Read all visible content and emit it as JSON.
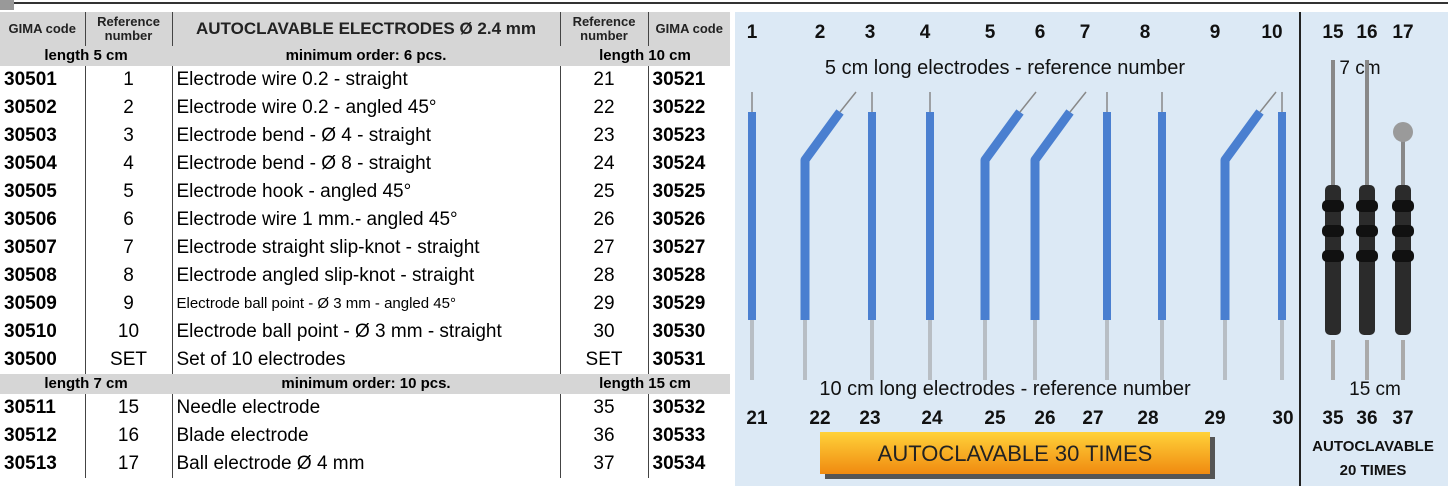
{
  "table": {
    "header": [
      "GIMA code",
      "Reference number",
      "AUTOCLAVABLE ELECTRODES Ø 2.4 mm",
      "Reference number",
      "GIMA code"
    ],
    "sections": [
      {
        "left": "length 5 cm",
        "middle": "minimum order: 6 pcs.",
        "right": "length 10 cm",
        "rows": [
          [
            "30501",
            "1",
            "Electrode wire 0.2 - straight",
            "21",
            "30521"
          ],
          [
            "30502",
            "2",
            "Electrode wire 0.2 - angled 45°",
            "22",
            "30522"
          ],
          [
            "30503",
            "3",
            "Electrode bend - Ø 4 - straight",
            "23",
            "30523"
          ],
          [
            "30504",
            "4",
            "Electrode bend - Ø 8 - straight",
            "24",
            "30524"
          ],
          [
            "30505",
            "5",
            "Electrode hook - angled 45°",
            "25",
            "30525"
          ],
          [
            "30506",
            "6",
            "Electrode wire 1 mm.- angled 45°",
            "26",
            "30526"
          ],
          [
            "30507",
            "7",
            "Electrode straight slip-knot - straight",
            "27",
            "30527"
          ],
          [
            "30508",
            "8",
            "Electrode angled slip-knot - straight",
            "28",
            "30528"
          ],
          [
            "30509",
            "9",
            "Electrode ball point - Ø 3 mm - angled 45°",
            "29",
            "30529"
          ],
          [
            "30510",
            "10",
            "Electrode ball point - Ø 3 mm - straight",
            "30",
            "30530"
          ],
          [
            "30500",
            "SET",
            "Set of 10 electrodes",
            "SET",
            "30531"
          ]
        ]
      },
      {
        "left": "length 7 cm",
        "middle": "minimum order: 10 pcs.",
        "right": "length 15 cm",
        "rows": [
          [
            "30511",
            "15",
            "Needle electrode",
            "35",
            "30532"
          ],
          [
            "30512",
            "16",
            "Blade electrode",
            "36",
            "30533"
          ],
          [
            "30513",
            "17",
            "Ball electrode Ø 4 mm",
            "37",
            "30534"
          ]
        ]
      }
    ]
  },
  "figure": {
    "top_numbers": [
      "1",
      "2",
      "3",
      "4",
      "5",
      "6",
      "7",
      "8",
      "9",
      "10"
    ],
    "top_right_numbers": [
      "15",
      "16",
      "17"
    ],
    "top_caption": "5 cm long electrodes - reference number",
    "top_right_caption": "7 cm",
    "bottom_caption": "10 cm long electrodes - reference number",
    "bottom_right_caption": "15 cm",
    "bottom_numbers": [
      "21",
      "22",
      "23",
      "24",
      "25",
      "26",
      "27",
      "28",
      "29",
      "30"
    ],
    "bottom_right_numbers": [
      "35",
      "36",
      "37"
    ],
    "badge": "AUTOCLAVABLE 30 TIMES",
    "right_badge": [
      "AUTOCLAVABLE",
      "20 TIMES"
    ]
  }
}
